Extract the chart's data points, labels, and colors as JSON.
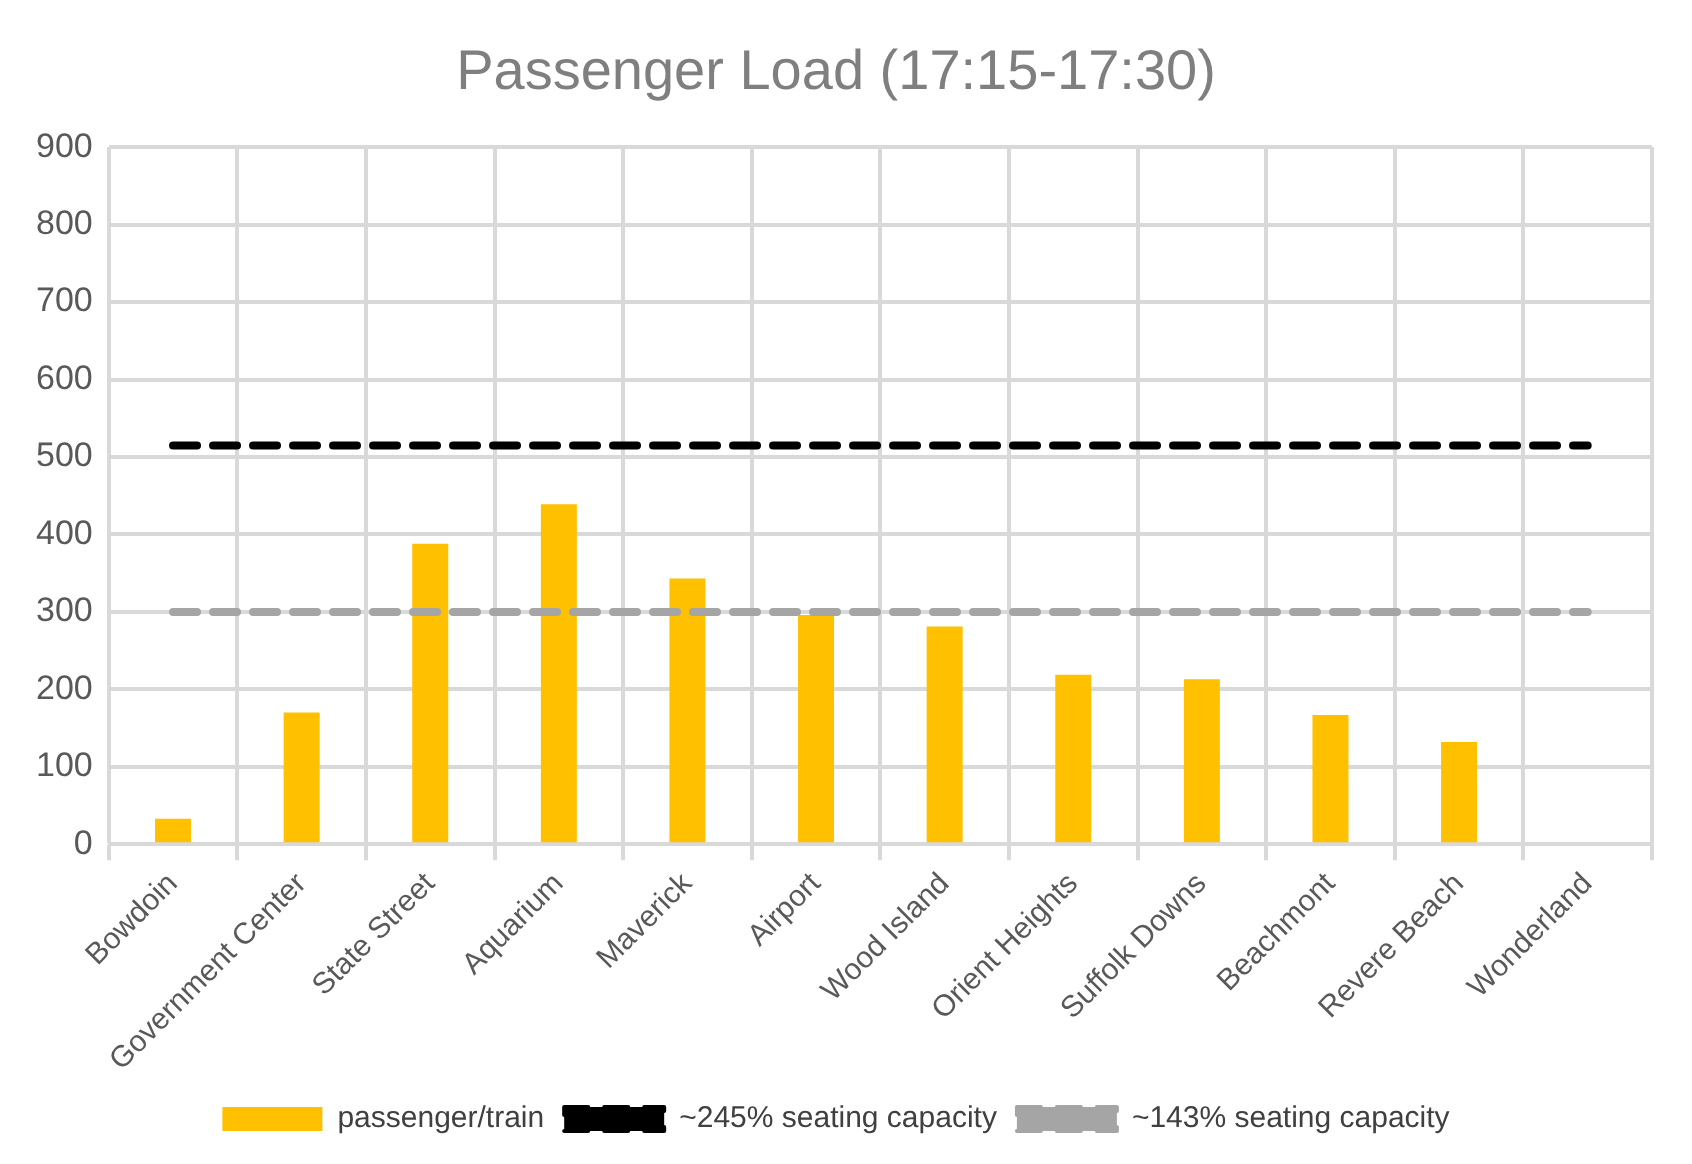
{
  "chart_data": {
    "type": "bar",
    "title": "Passenger Load (17:15-17:30)",
    "categories": [
      "Bowdoin",
      "Government Center",
      "State Street",
      "Aquarium",
      "Maverick",
      "Airport",
      "Wood Island",
      "Orient Heights",
      "Suffolk Downs",
      "Beachmont",
      "Revere Beach",
      "Wonderland"
    ],
    "series": [
      {
        "name": "passenger/train",
        "color": "#ffc000",
        "values": [
          33,
          170,
          388,
          439,
          343,
          296,
          281,
          219,
          213,
          167,
          132,
          null
        ]
      },
      {
        "name": "~245% seating capacity",
        "type": "line",
        "color": "#000000",
        "line_style": "dashed",
        "marker": "none",
        "values": [
          515,
          515,
          515,
          515,
          515,
          515,
          515,
          515,
          515,
          515,
          515,
          515
        ]
      },
      {
        "name": "~143% seating capacity",
        "type": "line",
        "color": "#a5a5a5",
        "line_style": "dashed",
        "marker": "none",
        "values": [
          300,
          300,
          300,
          300,
          300,
          300,
          300,
          300,
          300,
          300,
          300,
          300
        ]
      }
    ],
    "ylim": [
      0,
      900
    ],
    "yticks": [
      0,
      100,
      200,
      300,
      400,
      500,
      600,
      700,
      800,
      900
    ],
    "grid": true,
    "legend": "bottom"
  }
}
